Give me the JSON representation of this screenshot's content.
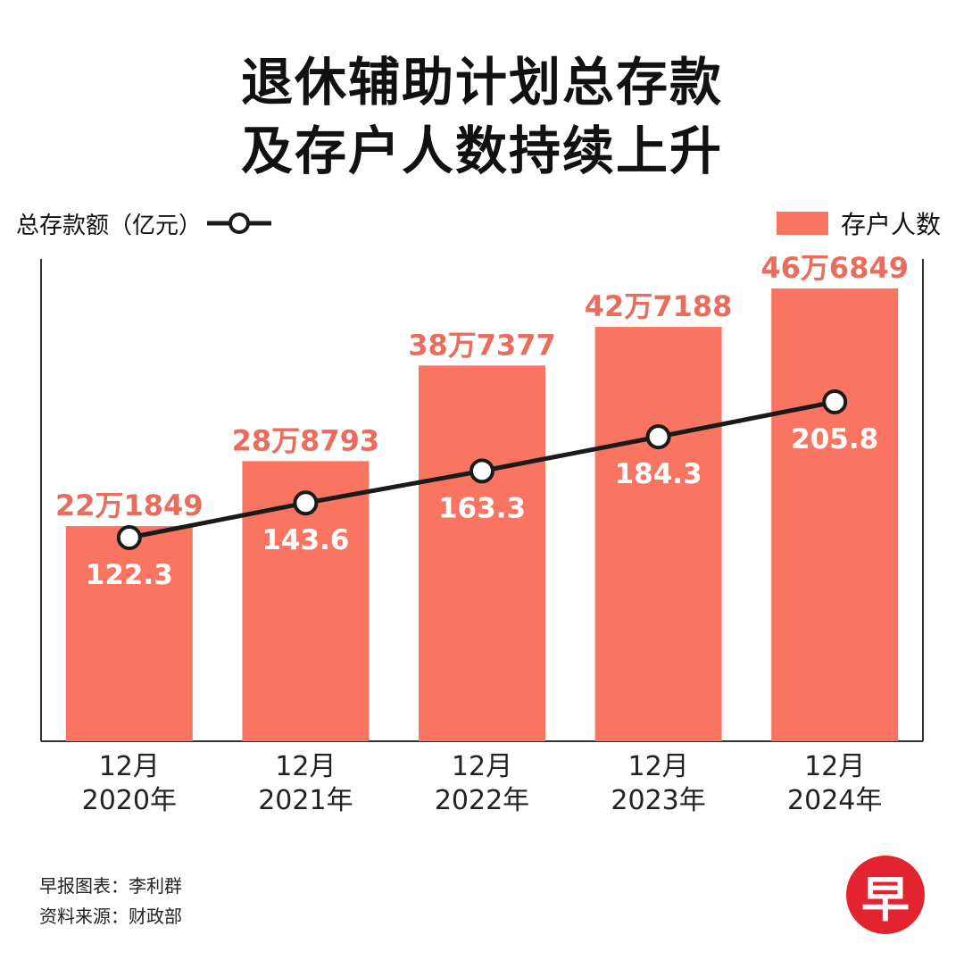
{
  "title_line1": "退休辅助计划总存款",
  "title_line2": "及存户人数持续上升",
  "legend": {
    "line_label": "总存款额（亿元）",
    "bar_label": "存户人数"
  },
  "footer": {
    "line1": "早报图表：李利群",
    "line2": "资料来源：财政部"
  },
  "logo_text": "早",
  "chart_data": {
    "type": "bar",
    "categories": [
      "12月\n2020年",
      "12月\n2021年",
      "12月\n2022年",
      "12月\n2023年",
      "12月\n2024年"
    ],
    "series": [
      {
        "name": "存户人数",
        "type": "bar",
        "values": [
          221849,
          288793,
          387377,
          427188,
          466849
        ],
        "labels": [
          "22万1849",
          "28万8793",
          "38万7377",
          "42万7188",
          "46万6849"
        ],
        "color": "#fa7561"
      },
      {
        "name": "总存款额（亿元）",
        "type": "line",
        "values": [
          122.3,
          143.6,
          163.3,
          184.3,
          205.8
        ],
        "labels": [
          "122.3",
          "143.6",
          "163.3",
          "184.3",
          "205.8"
        ],
        "color": "#1a1a1a"
      }
    ],
    "colors": {
      "bar_label": "#e86d5c",
      "line_label": "#ffffff",
      "axis": "#333333"
    }
  }
}
